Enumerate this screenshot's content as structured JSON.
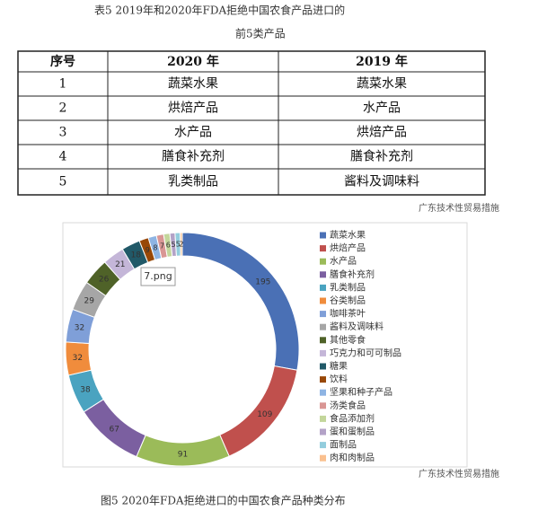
{
  "header": {
    "title_line1": "表5        2019年和2020年FDA拒绝中国农食产品进口的",
    "title_line2": "前5类产品"
  },
  "table": {
    "columns": [
      "序号",
      "2020 年",
      "2019 年"
    ],
    "rows": [
      [
        "1",
        "蔬菜水果",
        "蔬菜水果"
      ],
      [
        "2",
        "烘焙产品",
        "水产品"
      ],
      [
        "3",
        "水产品",
        "烘焙产品"
      ],
      [
        "4",
        "膳食补充剂",
        "膳食补充剂"
      ],
      [
        "5",
        "乳类制品",
        "酱料及调味料"
      ]
    ]
  },
  "watermark": "广东技术性贸易措施",
  "tooltip": "7.png",
  "chart_data": {
    "type": "pie",
    "categories": [
      "蔬菜水果",
      "烘焙产品",
      "水产品",
      "膳食补充剂",
      "乳类制品",
      "谷类制品",
      "咖啡茶叶",
      "酱料及调味料",
      "其他零食",
      "巧克力和可可制品",
      "糖果",
      "饮料",
      "坚果和种子产品",
      "汤类食品",
      "食品添加剂",
      "蛋和蛋制品",
      "面制品",
      "肉和肉制品"
    ],
    "values": [
      195,
      109,
      91,
      67,
      38,
      32,
      32,
      29,
      26,
      21,
      18,
      9,
      8,
      7,
      6,
      5,
      5,
      2
    ],
    "colors": [
      "#4a70b5",
      "#c0504d",
      "#9bbb59",
      "#7b5fa0",
      "#4aa3c0",
      "#f08c3c",
      "#7f9fd8",
      "#a6a6a6",
      "#4f6228",
      "#c4b6d8",
      "#215968",
      "#984807",
      "#8eb4e3",
      "#d99694",
      "#c3d69b",
      "#b3a2c7",
      "#93cddd",
      "#fac08f"
    ]
  },
  "caption": "图5        2020年FDA拒绝进口的中国农食产品种类分布"
}
